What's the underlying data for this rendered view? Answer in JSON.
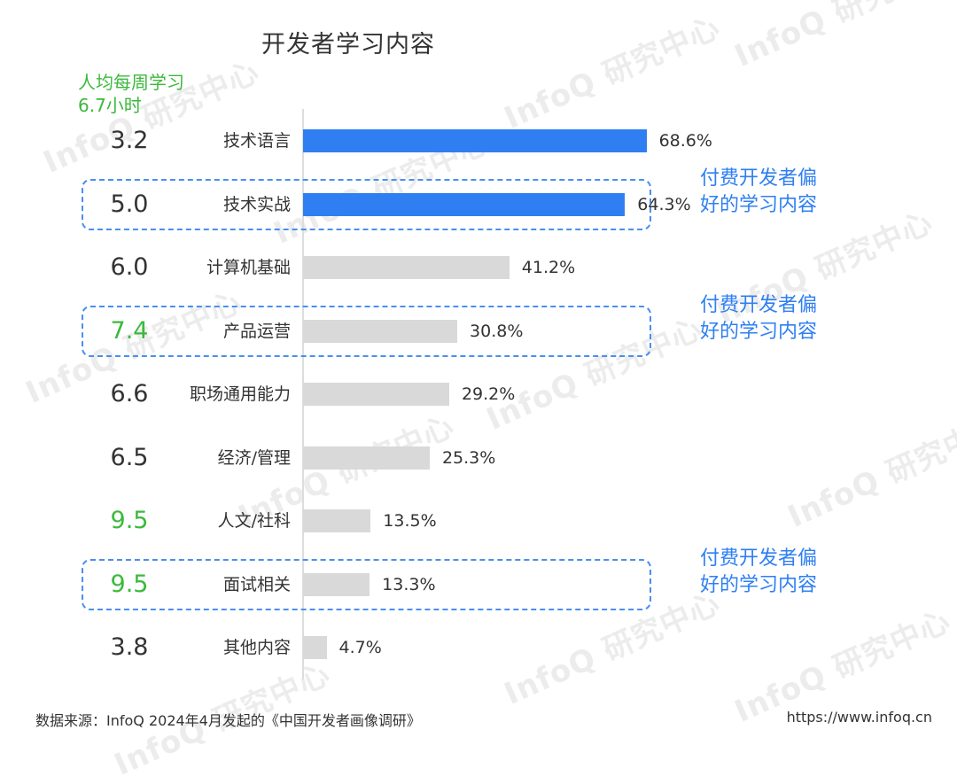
{
  "title": "开发者学习内容",
  "hours_caption": "人均每周学习6.7小时",
  "chart_data": {
    "type": "bar",
    "orientation": "horizontal",
    "title": "开发者学习内容",
    "categories": [
      "技术语言",
      "技术实战",
      "计算机基础",
      "产品运营",
      "职场通用能力",
      "经济/管理",
      "人文/社科",
      "面试相关",
      "其他内容"
    ],
    "values": [
      68.6,
      64.3,
      41.2,
      30.8,
      29.2,
      25.3,
      13.5,
      13.3,
      4.7
    ],
    "value_labels": [
      "68.6%",
      "64.3%",
      "41.2%",
      "30.8%",
      "29.2%",
      "25.3%",
      "13.5%",
      "13.3%",
      "4.7%"
    ],
    "hours": [
      "3.2",
      "5.0",
      "6.0",
      "7.4",
      "6.6",
      "6.5",
      "9.5",
      "9.5",
      "3.8"
    ],
    "hours_highlight": [
      false,
      false,
      false,
      true,
      false,
      false,
      true,
      true,
      false
    ],
    "bar_highlight": [
      true,
      true,
      false,
      false,
      false,
      false,
      false,
      false,
      false
    ],
    "xlim": [
      0,
      100
    ],
    "colors": {
      "highlight_bar": "#2f7ff2",
      "normal_bar": "#d9d9d9",
      "green_text": "#3cb93c",
      "annotation": "#2f7ff2"
    },
    "annotations": [
      {
        "category": "技术实战",
        "text": "付费开发者偏好的学习内容"
      },
      {
        "category": "产品运营",
        "text": "付费开发者偏好的学习内容"
      },
      {
        "category": "面试相关",
        "text": "付费开发者偏好的学习内容"
      }
    ]
  },
  "footer": {
    "source": "数据来源：InfoQ 2024年4月发起的《中国开发者画像调研》",
    "url": "https://www.infoq.cn"
  },
  "watermark_text": "InfoQ 研究中心"
}
